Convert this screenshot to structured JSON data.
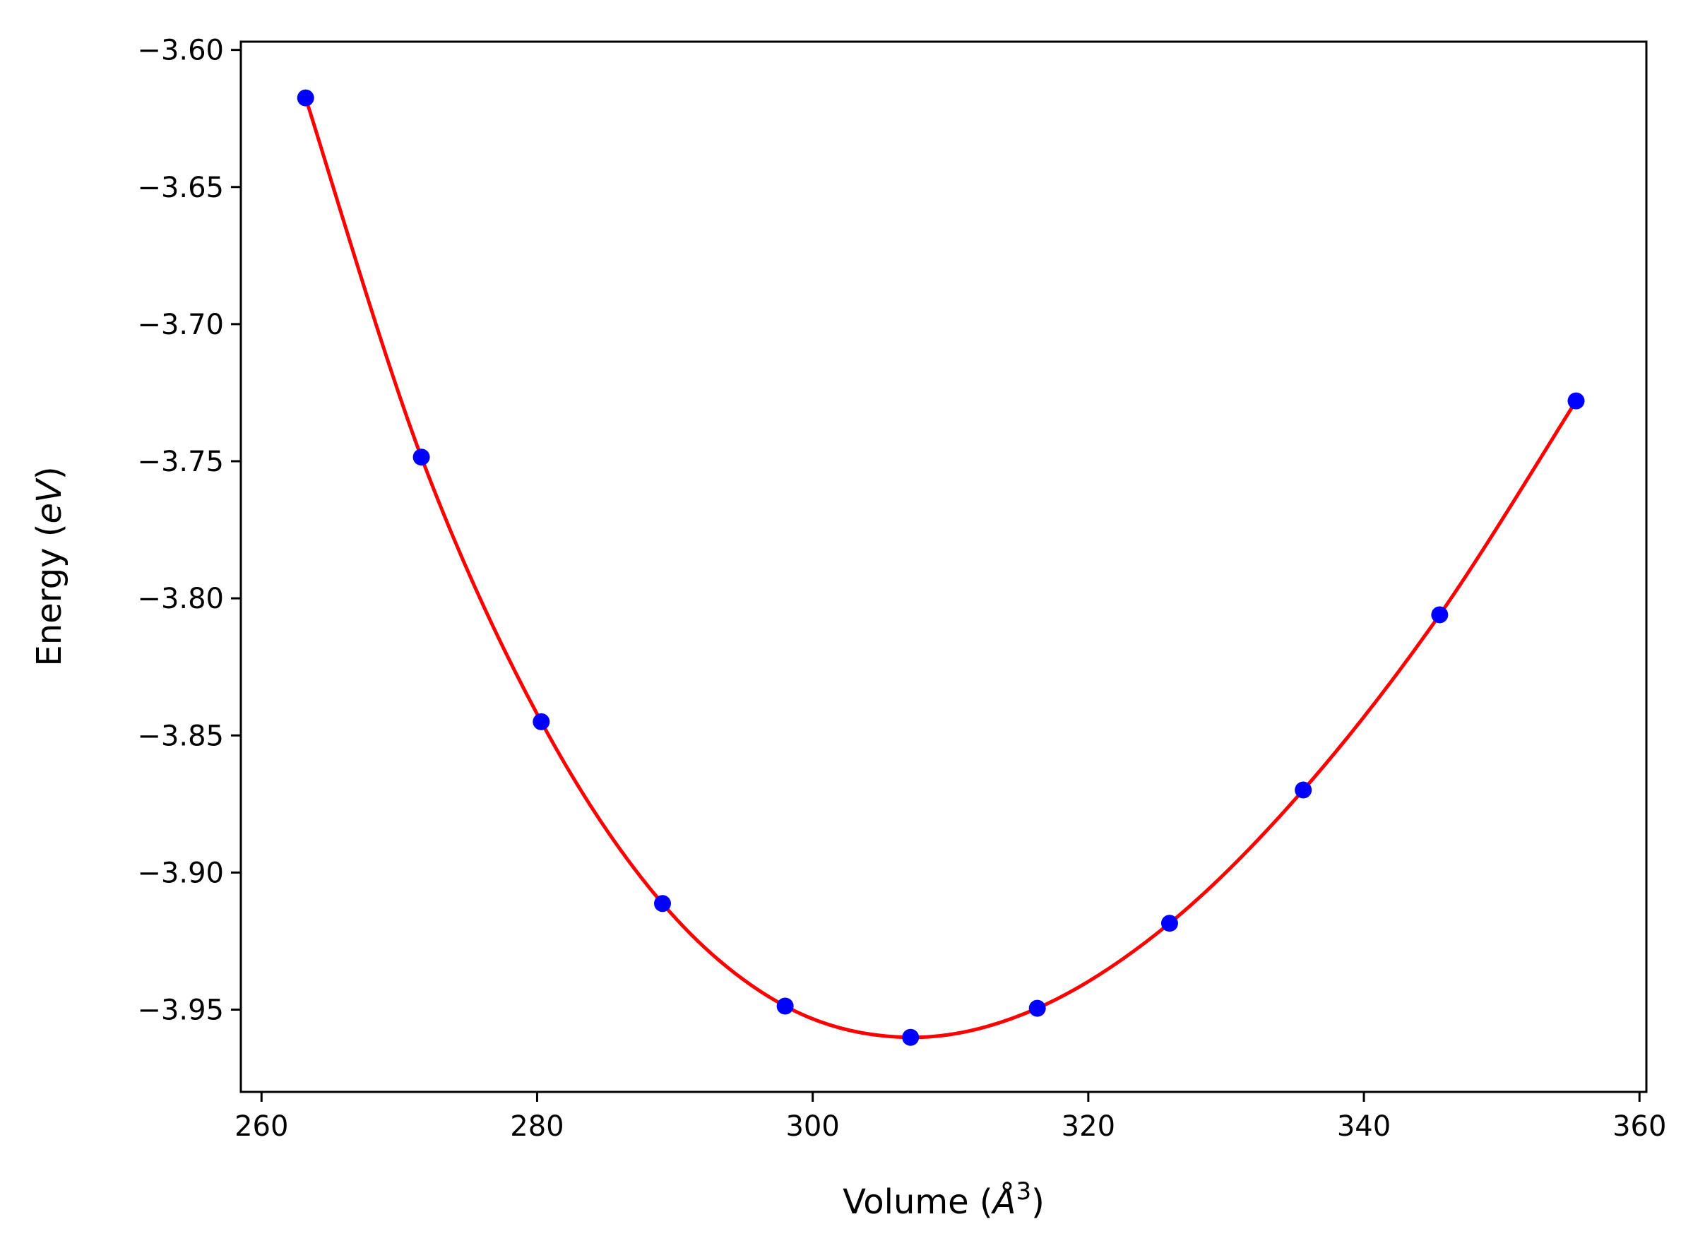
{
  "chart_data": {
    "type": "line",
    "title": "",
    "xlabel": {
      "prefix": "Volume (",
      "unit": "Å",
      "sup": "3",
      "suffix": ")"
    },
    "ylabel": {
      "prefix": "Energy (",
      "unit": "eV",
      "suffix": ")"
    },
    "xlim": [
      258.5,
      360.5
    ],
    "ylim": [
      -3.98,
      -3.597
    ],
    "xticks": [
      260,
      280,
      300,
      320,
      340,
      360
    ],
    "xtick_labels": [
      "260",
      "280",
      "300",
      "320",
      "340",
      "360"
    ],
    "yticks": [
      -3.6,
      -3.65,
      -3.7,
      -3.75,
      -3.8,
      -3.85,
      -3.9,
      -3.95
    ],
    "ytick_labels": [
      "−3.60",
      "−3.65",
      "−3.70",
      "−3.75",
      "−3.80",
      "−3.85",
      "−3.90",
      "−3.95"
    ],
    "grid": false,
    "series": [
      {
        "name": "data",
        "style": "markers",
        "color": "#0000ff",
        "x": [
          263.2,
          271.6,
          280.3,
          289.1,
          298.0,
          307.1,
          316.3,
          325.9,
          335.6,
          345.5,
          355.4
        ],
        "y": [
          -3.6175,
          -3.7485,
          -3.845,
          -3.9113,
          -3.9487,
          -3.9601,
          -3.9495,
          -3.9185,
          -3.8699,
          -3.806,
          -3.728
        ]
      },
      {
        "name": "fit",
        "style": "line",
        "color": "#ff0000",
        "x": [
          263.2,
          271.6,
          280.3,
          289.1,
          298.0,
          307.1,
          316.3,
          325.9,
          335.6,
          345.5,
          355.4
        ],
        "y": [
          -3.6175,
          -3.7485,
          -3.845,
          -3.9113,
          -3.9487,
          -3.9601,
          -3.9495,
          -3.9185,
          -3.8699,
          -3.806,
          -3.728
        ]
      }
    ]
  }
}
